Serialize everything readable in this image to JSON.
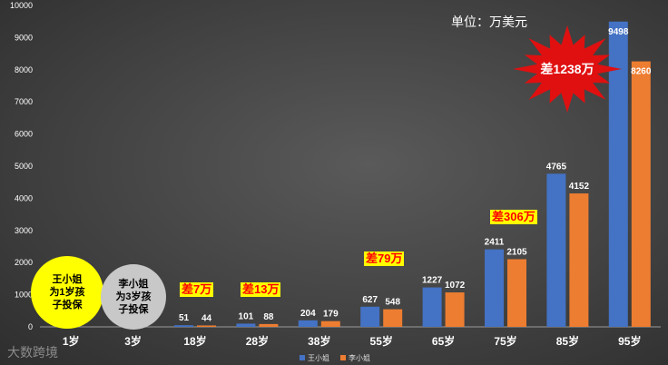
{
  "unit_label": "单位：万美元",
  "bubbles": {
    "wang": "王小姐\n为1岁孩\n子投保",
    "li": "李小姐\n为3岁孩\n子投保"
  },
  "differences": [
    {
      "label": "差7万",
      "color": "#ff0000",
      "bg": "#ffff00"
    },
    {
      "label": "差13万",
      "color": "#ff0000",
      "bg": "#ffff00"
    },
    {
      "label": "差79万",
      "color": "#ff0000",
      "bg": "#ffff00"
    },
    {
      "label": "差306万",
      "color": "#ff0000",
      "bg": "#ffff00"
    },
    {
      "label": "差1238万",
      "color": "#ffffff",
      "bg": "#e01010"
    }
  ],
  "logo_text": "大数跨境",
  "chart_data": {
    "type": "bar",
    "categories": [
      "1岁",
      "3岁",
      "18岁",
      "28岁",
      "38岁",
      "55岁",
      "65岁",
      "75岁",
      "85岁",
      "95岁"
    ],
    "series": [
      {
        "name": "王小姐",
        "color": "#4472c4",
        "values": [
          0,
          0,
          51,
          101,
          204,
          627,
          1227,
          2411,
          4765,
          9498
        ]
      },
      {
        "name": "李小姐",
        "color": "#ed7d31",
        "values": [
          0,
          0,
          44,
          88,
          179,
          548,
          1072,
          2105,
          4152,
          8260
        ]
      }
    ],
    "ylim": [
      0,
      10000
    ],
    "yticks": [
      0,
      1000,
      2000,
      3000,
      4000,
      5000,
      6000,
      7000,
      8000,
      9000,
      10000
    ],
    "title": "",
    "xlabel": "",
    "ylabel": "",
    "grid": false,
    "legend": "bottom"
  }
}
